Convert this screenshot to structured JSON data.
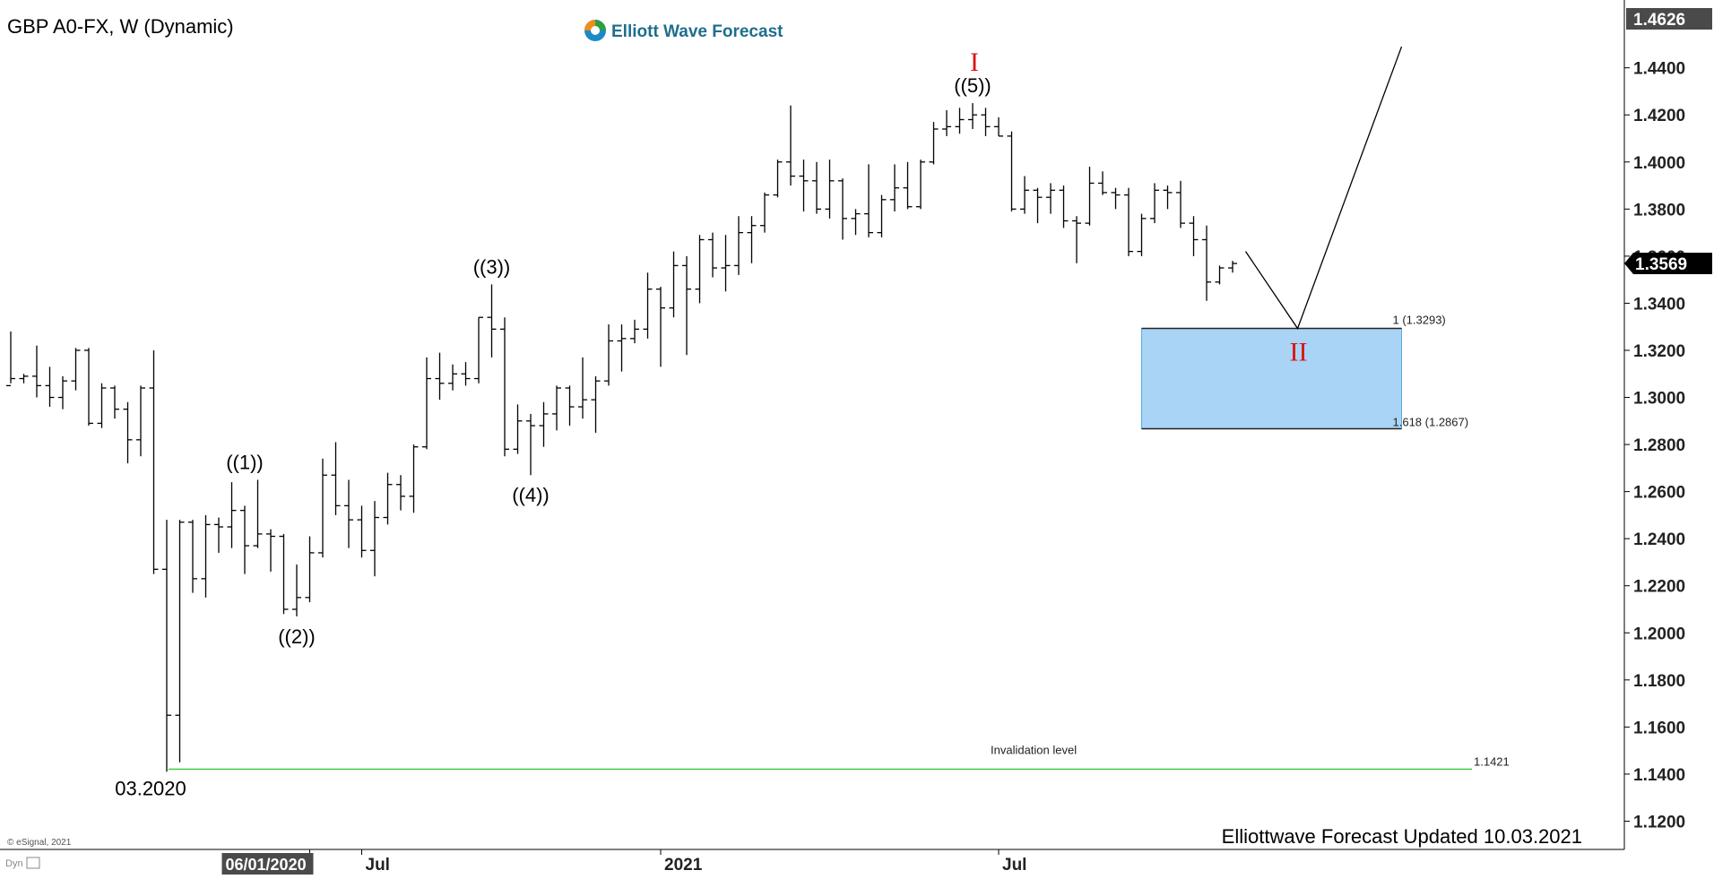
{
  "header": {
    "symbol_title": "GBP A0-FX, W (Dynamic)",
    "brand": "Elliott Wave Forecast",
    "footer_text": "Elliottwave Forecast Updated 10.03.2021",
    "copyright": "© eSignal, 2021",
    "dyn_label": "Dyn"
  },
  "colors": {
    "bars": "#000000",
    "wave_red": "#dd1111",
    "invalidation": "#33cc33",
    "target_box": "#aad4f5",
    "target_border": "#222222"
  },
  "chart_data": {
    "type": "ohlc_bar",
    "timeframe": "weekly",
    "yticks": [
      1.12,
      1.14,
      1.16,
      1.18,
      1.2,
      1.22,
      1.24,
      1.26,
      1.28,
      1.3,
      1.32,
      1.34,
      1.36,
      1.38,
      1.4,
      1.42,
      1.44
    ],
    "ytick_labels": [
      "1.1200",
      "1.1400",
      "1.1600",
      "1.1800",
      "1.2000",
      "1.2200",
      "1.2400",
      "1.2600",
      "1.2800",
      "1.3000",
      "1.3200",
      "1.3400",
      "1.3600",
      "1.3800",
      "1.4000",
      "1.4200",
      "1.4400"
    ],
    "ylim": [
      1.108,
      1.465
    ],
    "top_price_label": "1.4626",
    "last_price_label": "1.3569",
    "last_price": 1.3569,
    "x_tick_labels": [
      {
        "label": "06/01/2020",
        "bar": 23,
        "highlight": true
      },
      {
        "label": "Jul",
        "bar": 27
      },
      {
        "label": "2021",
        "bar": 50
      },
      {
        "label": "Jul",
        "bar": 76
      }
    ],
    "bars": [
      [
        1.305,
        1.328,
        1.306,
        1.308
      ],
      [
        1.308,
        1.31,
        1.306,
        1.309
      ],
      [
        1.309,
        1.322,
        1.3,
        1.305
      ],
      [
        1.305,
        1.313,
        1.296,
        1.3
      ],
      [
        1.3,
        1.309,
        1.295,
        1.307
      ],
      [
        1.307,
        1.321,
        1.303,
        1.32
      ],
      [
        1.32,
        1.321,
        1.288,
        1.289
      ],
      [
        1.289,
        1.306,
        1.287,
        1.304
      ],
      [
        1.304,
        1.305,
        1.291,
        1.295
      ],
      [
        1.295,
        1.298,
        1.272,
        1.282
      ],
      [
        1.282,
        1.305,
        1.275,
        1.304
      ],
      [
        1.304,
        1.32,
        1.225,
        1.227
      ],
      [
        1.227,
        1.248,
        1.141,
        1.165
      ],
      [
        1.165,
        1.248,
        1.145,
        1.247
      ],
      [
        1.247,
        1.248,
        1.217,
        1.223
      ],
      [
        1.223,
        1.25,
        1.215,
        1.246
      ],
      [
        1.246,
        1.249,
        1.234,
        1.245
      ],
      [
        1.245,
        1.264,
        1.236,
        1.252
      ],
      [
        1.252,
        1.254,
        1.225,
        1.237
      ],
      [
        1.237,
        1.265,
        1.236,
        1.242
      ],
      [
        1.242,
        1.244,
        1.226,
        1.241
      ],
      [
        1.241,
        1.242,
        1.208,
        1.21
      ],
      [
        1.21,
        1.229,
        1.207,
        1.215
      ],
      [
        1.215,
        1.241,
        1.213,
        1.234
      ],
      [
        1.234,
        1.274,
        1.232,
        1.267
      ],
      [
        1.267,
        1.281,
        1.25,
        1.254
      ],
      [
        1.254,
        1.265,
        1.236,
        1.248
      ],
      [
        1.248,
        1.254,
        1.232,
        1.235
      ],
      [
        1.235,
        1.256,
        1.224,
        1.249
      ],
      [
        1.249,
        1.268,
        1.246,
        1.263
      ],
      [
        1.263,
        1.267,
        1.252,
        1.258
      ],
      [
        1.258,
        1.28,
        1.251,
        1.279
      ],
      [
        1.279,
        1.317,
        1.278,
        1.308
      ],
      [
        1.308,
        1.319,
        1.299,
        1.306
      ],
      [
        1.306,
        1.314,
        1.303,
        1.31
      ],
      [
        1.31,
        1.315,
        1.305,
        1.308
      ],
      [
        1.308,
        1.334,
        1.306,
        1.334
      ],
      [
        1.334,
        1.348,
        1.317,
        1.329
      ],
      [
        1.329,
        1.334,
        1.275,
        1.278
      ],
      [
        1.278,
        1.297,
        1.276,
        1.29
      ],
      [
        1.29,
        1.293,
        1.267,
        1.288
      ],
      [
        1.288,
        1.298,
        1.279,
        1.293
      ],
      [
        1.293,
        1.305,
        1.286,
        1.304
      ],
      [
        1.304,
        1.305,
        1.288,
        1.296
      ],
      [
        1.296,
        1.317,
        1.291,
        1.299
      ],
      [
        1.299,
        1.309,
        1.285,
        1.307
      ],
      [
        1.307,
        1.331,
        1.305,
        1.324
      ],
      [
        1.324,
        1.331,
        1.311,
        1.325
      ],
      [
        1.325,
        1.333,
        1.323,
        1.329
      ],
      [
        1.329,
        1.353,
        1.325,
        1.346
      ],
      [
        1.346,
        1.347,
        1.313,
        1.338
      ],
      [
        1.338,
        1.362,
        1.334,
        1.356
      ],
      [
        1.356,
        1.36,
        1.318,
        1.346
      ],
      [
        1.346,
        1.369,
        1.34,
        1.367
      ],
      [
        1.367,
        1.37,
        1.351,
        1.355
      ],
      [
        1.355,
        1.369,
        1.345,
        1.356
      ],
      [
        1.356,
        1.377,
        1.352,
        1.37
      ],
      [
        1.37,
        1.377,
        1.357,
        1.373
      ],
      [
        1.373,
        1.387,
        1.37,
        1.386
      ],
      [
        1.386,
        1.401,
        1.385,
        1.4
      ],
      [
        1.4,
        1.424,
        1.39,
        1.394
      ],
      [
        1.394,
        1.401,
        1.379,
        1.392
      ],
      [
        1.392,
        1.4,
        1.378,
        1.38
      ],
      [
        1.38,
        1.401,
        1.376,
        1.392
      ],
      [
        1.392,
        1.393,
        1.367,
        1.376
      ],
      [
        1.376,
        1.38,
        1.369,
        1.378
      ],
      [
        1.378,
        1.399,
        1.368,
        1.37
      ],
      [
        1.37,
        1.386,
        1.368,
        1.384
      ],
      [
        1.384,
        1.399,
        1.379,
        1.389
      ],
      [
        1.389,
        1.4,
        1.38,
        1.381
      ],
      [
        1.381,
        1.401,
        1.38,
        1.4
      ],
      [
        1.4,
        1.417,
        1.399,
        1.414
      ],
      [
        1.414,
        1.422,
        1.411,
        1.415
      ],
      [
        1.415,
        1.423,
        1.412,
        1.418
      ],
      [
        1.418,
        1.425,
        1.414,
        1.42
      ],
      [
        1.42,
        1.423,
        1.411,
        1.415
      ],
      [
        1.415,
        1.419,
        1.411,
        1.411
      ],
      [
        1.411,
        1.413,
        1.379,
        1.38
      ],
      [
        1.38,
        1.394,
        1.378,
        1.388
      ],
      [
        1.388,
        1.389,
        1.374,
        1.385
      ],
      [
        1.385,
        1.391,
        1.378,
        1.388
      ],
      [
        1.388,
        1.39,
        1.372,
        1.375
      ],
      [
        1.375,
        1.377,
        1.357,
        1.374
      ],
      [
        1.374,
        1.398,
        1.373,
        1.391
      ],
      [
        1.391,
        1.396,
        1.386,
        1.387
      ],
      [
        1.387,
        1.389,
        1.38,
        1.386
      ],
      [
        1.386,
        1.389,
        1.36,
        1.362
      ],
      [
        1.362,
        1.378,
        1.36,
        1.376
      ],
      [
        1.376,
        1.391,
        1.374,
        1.388
      ],
      [
        1.388,
        1.39,
        1.38,
        1.387
      ],
      [
        1.387,
        1.392,
        1.372,
        1.374
      ],
      [
        1.374,
        1.377,
        1.36,
        1.367
      ],
      [
        1.367,
        1.373,
        1.341,
        1.349
      ],
      [
        1.349,
        1.356,
        1.348,
        1.355
      ],
      [
        1.355,
        1.358,
        1.353,
        1.3569
      ]
    ],
    "wave_labels": [
      {
        "text": "((1))",
        "bar": 18,
        "price": 1.265,
        "pos": "above"
      },
      {
        "text": "((2))",
        "bar": 22,
        "price": 1.207,
        "pos": "below"
      },
      {
        "text": "((3))",
        "bar": 37,
        "price": 1.348,
        "pos": "above"
      },
      {
        "text": "((4))",
        "bar": 40,
        "price": 1.267,
        "pos": "below"
      },
      {
        "text": "((5))",
        "bar": 74,
        "price": 1.425,
        "pos": "above"
      }
    ],
    "degree_labels": [
      {
        "text": "I",
        "bar": 74,
        "price": 1.425
      },
      {
        "text": "II",
        "bar": 99,
        "price": 1.3293
      }
    ],
    "start_label": {
      "text": "03.2020",
      "bar": 12,
      "price": 1.141
    },
    "projection": {
      "points": [
        [
          95,
          1.362
        ],
        [
          99,
          1.3293
        ],
        [
          107,
          1.449
        ]
      ]
    },
    "target_zone": {
      "bar_start": 87,
      "bar_end": 107,
      "top": 1.3293,
      "bottom": 1.2867,
      "top_label": "1 (1.3293)",
      "bottom_label": "1.618 (1.2867)"
    },
    "invalidation": {
      "price": 1.1421,
      "label": "Invalidation level",
      "value_label": "1.1421"
    },
    "grid": false
  }
}
